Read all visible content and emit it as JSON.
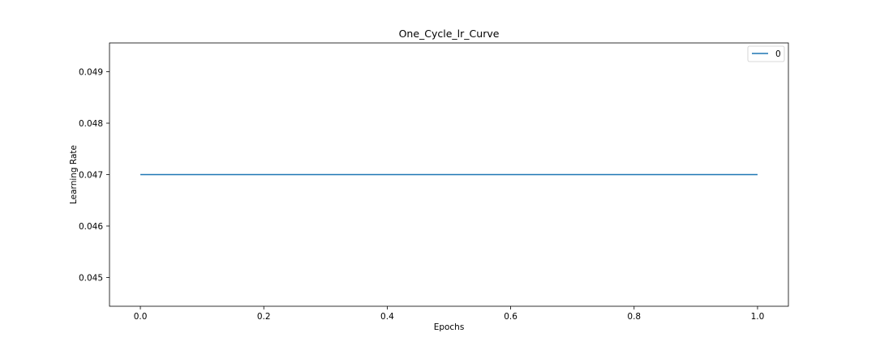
{
  "chart_data": {
    "type": "line",
    "title": "One_Cycle_lr_Curve",
    "xlabel": "Epochs",
    "ylabel": "Learning Rate",
    "xlim": [
      -0.05,
      1.05
    ],
    "ylim": [
      0.04444,
      0.04956
    ],
    "x_ticks": [
      0.0,
      0.2,
      0.4,
      0.6,
      0.8,
      1.0
    ],
    "x_tick_labels": [
      "0.0",
      "0.2",
      "0.4",
      "0.6",
      "0.8",
      "1.0"
    ],
    "y_ticks": [
      0.045,
      0.046,
      0.047,
      0.048,
      0.049
    ],
    "y_tick_labels": [
      "0.045",
      "0.046",
      "0.047",
      "0.048",
      "0.049"
    ],
    "grid": false,
    "legend_position": "top-right",
    "series": [
      {
        "name": "0",
        "color": "#1f77b4",
        "x": [
          0.0,
          1.0
        ],
        "y": [
          0.047,
          0.047
        ]
      }
    ]
  }
}
